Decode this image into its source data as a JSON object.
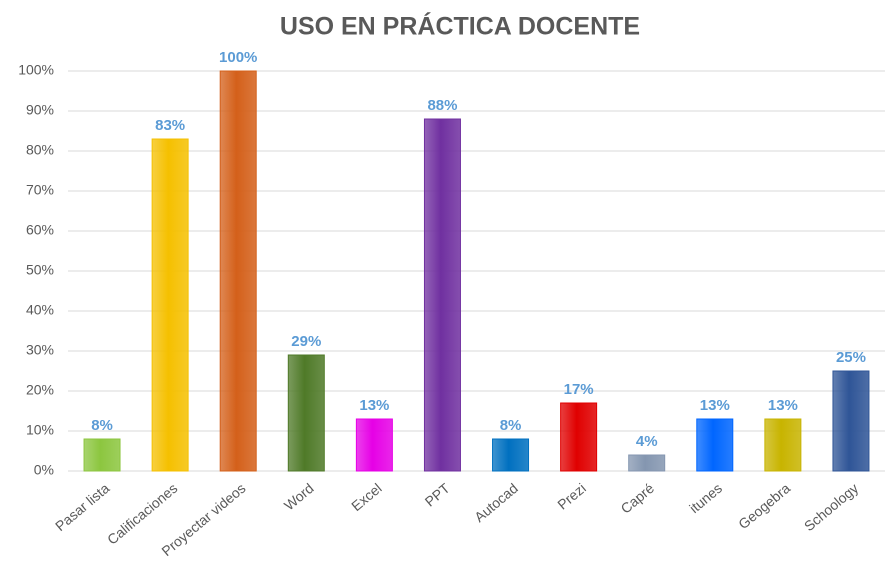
{
  "chart_data": {
    "type": "bar",
    "title": "USO EN PRÁCTICA DOCENTE",
    "categories": [
      "Pasar lista",
      "Calificaciones",
      "Proyectar videos",
      "Word",
      "Excel",
      "PPT",
      "Autocad",
      "Prezi",
      "Capré",
      "itunes",
      "Geogebra",
      "Schoology"
    ],
    "values": [
      8,
      83,
      100,
      29,
      13,
      88,
      8,
      17,
      4,
      13,
      13,
      25
    ],
    "value_labels": [
      "8%",
      "83%",
      "100%",
      "29%",
      "13%",
      "88%",
      "8%",
      "17%",
      "4%",
      "13%",
      "13%",
      "25%"
    ],
    "colors": [
      "#8cc63f",
      "#f5c000",
      "#d4601a",
      "#4f7a28",
      "#e600e6",
      "#7030a0",
      "#0070c0",
      "#e00000",
      "#8496b0",
      "#0066ff",
      "#c8b400",
      "#2f5597"
    ],
    "ylim": [
      0,
      100
    ],
    "yticks": [
      {
        "value": 0,
        "label": "0%"
      },
      {
        "value": 10,
        "label": "10%"
      },
      {
        "value": 20,
        "label": "20%"
      },
      {
        "value": 30,
        "label": "30%"
      },
      {
        "value": 40,
        "label": "40%"
      },
      {
        "value": 50,
        "label": "50%"
      },
      {
        "value": 60,
        "label": "60%"
      },
      {
        "value": 70,
        "label": "70%"
      },
      {
        "value": 80,
        "label": "80%"
      },
      {
        "value": 90,
        "label": "90%"
      },
      {
        "value": 100,
        "label": "100%"
      }
    ],
    "grid": true
  }
}
